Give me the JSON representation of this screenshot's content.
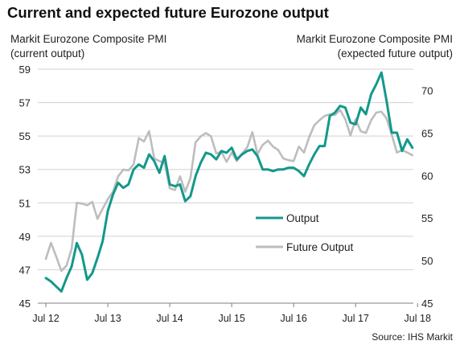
{
  "title": "Current and expected future Eurozone output",
  "left_axis_title": [
    "Markit Eurozone Composite PMI",
    "(current output)"
  ],
  "right_axis_title": [
    "Markit Eurozone Composite PMI",
    "(expected future output)"
  ],
  "source": "Source: IHS Markit",
  "colors": {
    "output": "#13988b",
    "future_output": "#bdbdbd"
  },
  "chart_data": {
    "type": "line",
    "title": "Current and expected future Eurozone output",
    "x_tick_labels": [
      "Jul 12",
      "Jul 13",
      "Jul 14",
      "Jul 15",
      "Jul 16",
      "Jul 17",
      "Jul 18"
    ],
    "x_range": [
      "Jul 12",
      "Jul 18"
    ],
    "y_left": {
      "label": "Markit Eurozone Composite PMI (current output)",
      "ticks": [
        45,
        47,
        49,
        51,
        53,
        55,
        57,
        59
      ],
      "range": [
        45,
        59
      ]
    },
    "y_right": {
      "label": "Markit Eurozone Composite PMI (expected future output)",
      "ticks": [
        45,
        50,
        55,
        60,
        65,
        70
      ],
      "range": [
        45,
        72.5
      ]
    },
    "grid": "horizontal",
    "legend_position": "center-right",
    "series": [
      {
        "name": "Output",
        "axis": "left",
        "color": "#13988b",
        "values": [
          46.5,
          46.3,
          46.0,
          45.7,
          46.5,
          47.2,
          48.6,
          47.9,
          46.4,
          46.8,
          47.7,
          48.7,
          50.5,
          51.5,
          52.2,
          51.9,
          52.1,
          53.0,
          53.3,
          53.1,
          53.9,
          53.5,
          52.8,
          53.8,
          52.1,
          52.0,
          52.1,
          51.1,
          51.4,
          52.6,
          53.4,
          54.0,
          53.9,
          53.6,
          54.1,
          54.0,
          54.3,
          53.6,
          53.9,
          54.1,
          54.2,
          53.8,
          53.0,
          53.0,
          52.9,
          53.0,
          53.0,
          53.1,
          53.1,
          52.9,
          52.6,
          53.3,
          53.9,
          54.4,
          54.4,
          56.2,
          56.4,
          56.8,
          56.7,
          55.8,
          55.7,
          56.7,
          56.3,
          57.5,
          58.1,
          58.8,
          57.1,
          55.2,
          55.2,
          54.1,
          54.8,
          54.3
        ]
      },
      {
        "name": "Future Output",
        "axis": "right",
        "color": "#bdbdbd",
        "values": [
          50.2,
          52.1,
          50.5,
          48.8,
          49.4,
          51.4,
          56.8,
          56.7,
          56.5,
          56.9,
          54.9,
          56.1,
          57.2,
          58.1,
          59.9,
          60.7,
          60.6,
          61.3,
          64.4,
          64.0,
          65.2,
          62.0,
          61.7,
          61.5,
          58.5,
          58.3,
          59.9,
          58.1,
          59.7,
          63.9,
          64.6,
          65.0,
          64.6,
          62.6,
          62.8,
          61.6,
          62.7,
          61.7,
          62.6,
          63.3,
          65.1,
          62.5,
          63.6,
          64.1,
          63.4,
          63.0,
          62.0,
          61.8,
          61.7,
          63.4,
          62.7,
          64.5,
          65.9,
          66.5,
          67.0,
          67.2,
          67.1,
          67.7,
          66.6,
          64.7,
          66.6,
          65.2,
          65.0,
          66.5,
          67.4,
          67.5,
          66.7,
          64.8,
          62.7,
          63.0,
          62.7,
          62.4
        ]
      }
    ],
    "legend": [
      "Output",
      "Future Output"
    ]
  }
}
